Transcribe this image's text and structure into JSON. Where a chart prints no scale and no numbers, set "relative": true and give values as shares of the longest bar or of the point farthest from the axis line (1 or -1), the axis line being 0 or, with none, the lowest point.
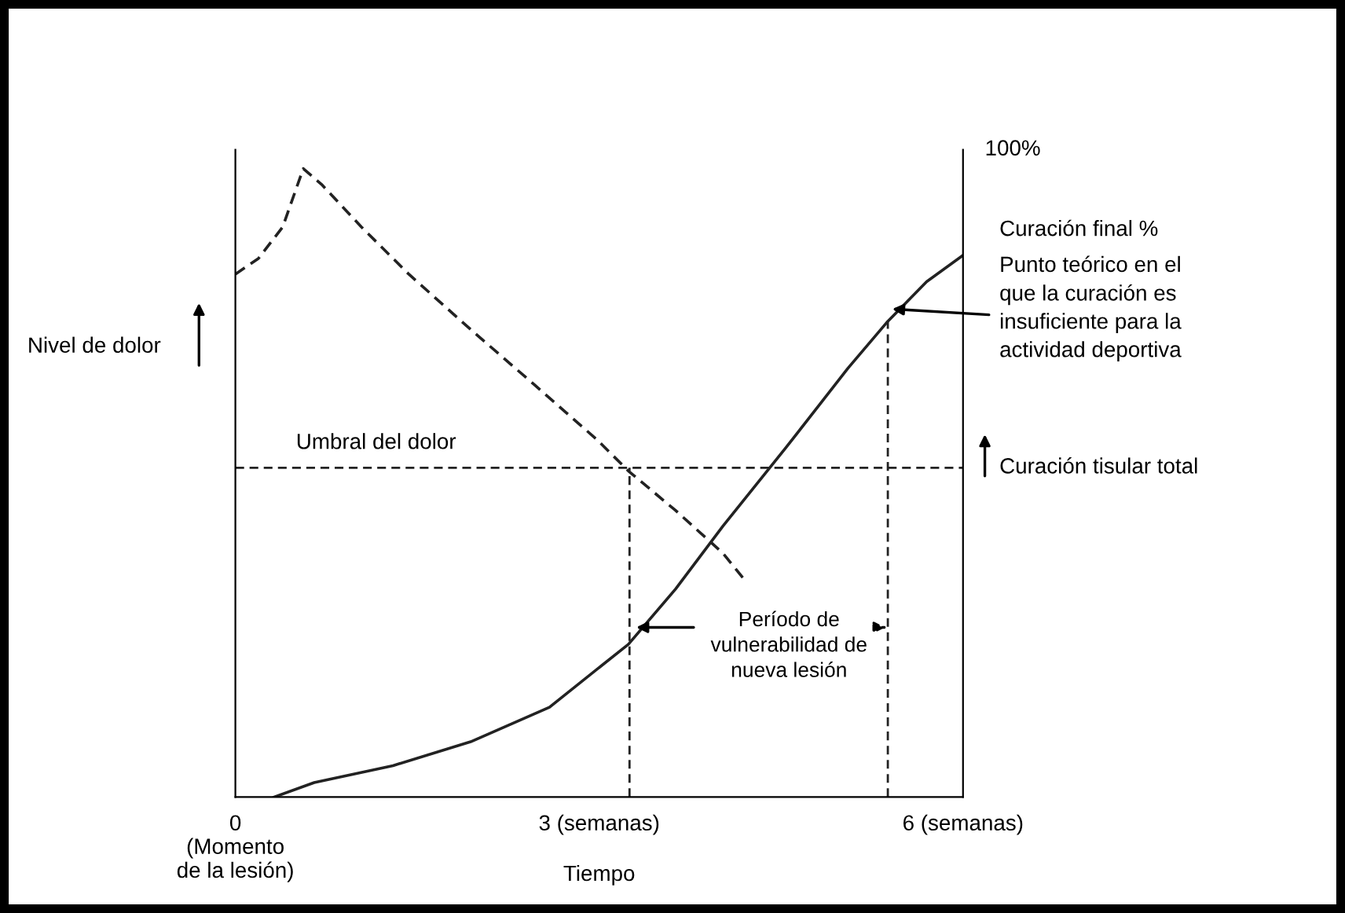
{
  "chart_data": {
    "type": "line",
    "relative": true,
    "ylabel": "Nivel de dolor",
    "xlabel": "Tiempo",
    "xlim": [
      0,
      6
    ],
    "xticks": [
      {
        "value": 0,
        "label": "0\n(Momento\nde la lesión)"
      },
      {
        "value": 3,
        "label": "3 (semanas)"
      },
      {
        "value": 6,
        "label": "6 (semanas)"
      }
    ],
    "grid": false,
    "legend": false,
    "marker": "none",
    "series": [
      {
        "color": "#222222",
        "line_style": "dashed",
        "x": [
          0,
          0.19,
          0.39,
          0.56,
          0.71,
          1.04,
          1.43,
          1.94,
          2.46,
          2.98,
          3.24,
          3.63,
          4.02,
          4.21
        ],
        "values": [
          0.832,
          0.857,
          0.907,
          1.0,
          0.975,
          0.907,
          0.832,
          0.744,
          0.657,
          0.569,
          0.519,
          0.456,
          0.388,
          0.343
        ]
      },
      {
        "color": "#222222",
        "line_style": "solid",
        "x": [
          0.32,
          0.65,
          1.3,
          1.94,
          2.59,
          3.24,
          3.63,
          4.02,
          4.54,
          5.05,
          5.38,
          5.7,
          6.0
        ],
        "values": [
          0,
          0.023,
          0.05,
          0.088,
          0.143,
          0.243,
          0.331,
          0.431,
          0.556,
          0.682,
          0.757,
          0.82,
          0.862
        ]
      }
    ],
    "ref_lines": [
      {
        "axis": "y",
        "value": 0.524,
        "label": "Umbral del dolor",
        "line_style": "dashed",
        "color": "#222222"
      },
      {
        "axis": "x",
        "value": 3.25,
        "line_style": "dashed",
        "color": "#222222"
      },
      {
        "axis": "x",
        "value": 5.38,
        "line_style": "dashed",
        "color": "#222222"
      }
    ],
    "annotations": [
      "100%",
      "Curación final %",
      "Punto teórico en el\nque la curación es\ninsuficiente para la\nactividad deportiva",
      "Curación tisular total",
      "Período de\nvulnerabilidad de\nnueva lesión"
    ]
  }
}
